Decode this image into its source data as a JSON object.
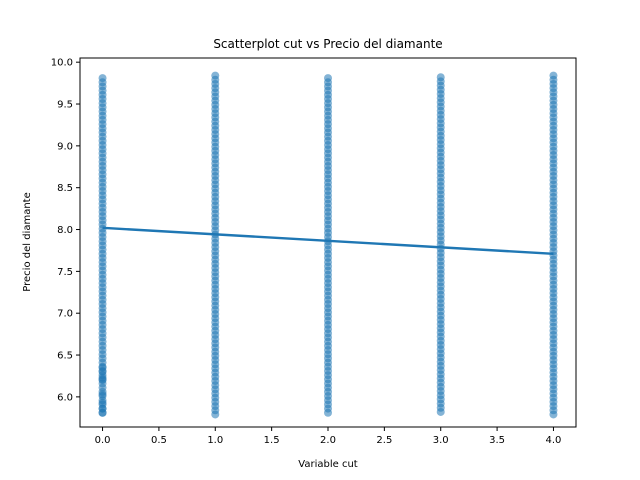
{
  "chart_data": {
    "type": "scatter",
    "title": "Scatterplot cut vs Precio del diamante",
    "xlabel": "Variable cut",
    "ylabel": "Precio del diamante",
    "xlim": [
      -0.2,
      4.2
    ],
    "ylim": [
      5.64,
      10.05
    ],
    "x_ticks": [
      "0.0",
      "0.5",
      "1.0",
      "1.5",
      "2.0",
      "2.5",
      "3.0",
      "3.5",
      "4.0"
    ],
    "y_ticks": [
      "6.0",
      "6.5",
      "7.0",
      "7.5",
      "8.0",
      "8.5",
      "9.0",
      "9.5",
      "10.0"
    ],
    "grid": false,
    "colors": {
      "points": "#1f77b4",
      "line": "#1f77b4"
    },
    "series": [
      {
        "kind": "points",
        "groups": [
          {
            "x": 0,
            "y_min": 5.81,
            "y_max": 9.84,
            "outliers": [
              5.81,
              5.86,
              5.93,
              6.03,
              6.2,
              6.23,
              6.3,
              6.35
            ]
          },
          {
            "x": 1,
            "y_min": 5.79,
            "y_max": 9.84,
            "outliers": []
          },
          {
            "x": 2,
            "y_min": 5.81,
            "y_max": 9.84,
            "outliers": []
          },
          {
            "x": 3,
            "y_min": 5.82,
            "y_max": 9.84,
            "outliers": []
          },
          {
            "x": 4,
            "y_min": 5.79,
            "y_max": 9.84,
            "outliers": []
          }
        ]
      },
      {
        "kind": "regression",
        "x": [
          0,
          4
        ],
        "y": [
          8.02,
          7.71
        ]
      }
    ]
  }
}
